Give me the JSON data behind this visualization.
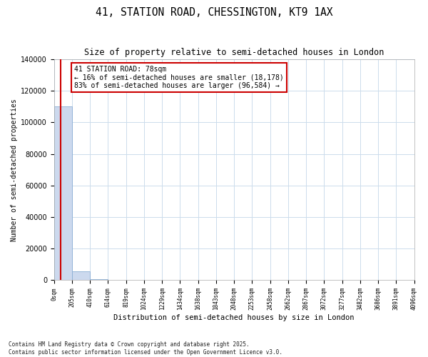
{
  "title": "41, STATION ROAD, CHESSINGTON, KT9 1AX",
  "subtitle": "Size of property relative to semi-detached houses in London",
  "xlabel": "Distribution of semi-detached houses by size in London",
  "ylabel": "Number of semi-detached properties",
  "property_size": 78,
  "annotation_title": "41 STATION ROAD: 78sqm",
  "annotation_smaller": "← 16% of semi-detached houses are smaller (18,178)",
  "annotation_larger": "83% of semi-detached houses are larger (96,584) →",
  "bar_color": "#ccd9ee",
  "bar_edge_color": "#8aadd4",
  "red_line_color": "#cc0000",
  "annotation_box_color": "#cc0000",
  "footer": "Contains HM Land Registry data © Crown copyright and database right 2025.\nContains public sector information licensed under the Open Government Licence v3.0.",
  "ylim": [
    0,
    140000
  ],
  "yticks": [
    0,
    20000,
    40000,
    60000,
    80000,
    100000,
    120000,
    140000
  ],
  "bin_edges": [
    0,
    205,
    410,
    614,
    819,
    1024,
    1229,
    1434,
    1638,
    1843,
    2048,
    2253,
    2458,
    2662,
    2867,
    3072,
    3277,
    3482,
    3686,
    3891,
    4096
  ],
  "bin_counts": [
    110000,
    5500,
    800,
    300,
    200,
    150,
    100,
    80,
    60,
    50,
    40,
    35,
    30,
    25,
    20,
    18,
    15,
    12,
    10,
    8
  ]
}
